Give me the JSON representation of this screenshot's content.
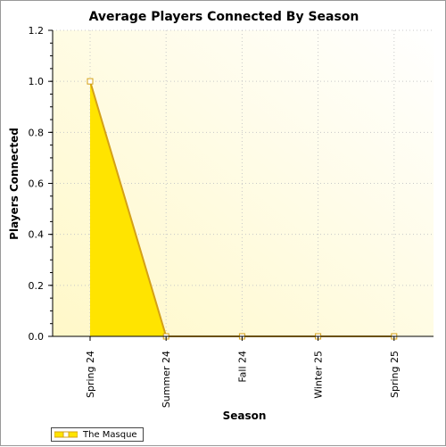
{
  "chart_data": {
    "type": "area",
    "title": "Average Players Connected By Season",
    "xlabel": "Season",
    "ylabel": "Players Connected",
    "categories": [
      "Spring 24",
      "Summer 24",
      "Fall 24",
      "Winter 25",
      "Spring 25"
    ],
    "series": [
      {
        "name": "The Masque",
        "values": [
          1.0,
          0.0,
          0.0,
          0.0,
          0.0
        ]
      }
    ],
    "ylim": [
      0,
      1.2
    ],
    "yticks": [
      "0.0",
      "0.2",
      "0.4",
      "0.6",
      "0.8",
      "1.0",
      "1.2"
    ],
    "grid": true,
    "legend": "bottom-left",
    "colors": {
      "fill": "#ffe400",
      "line": "#d4a017",
      "plot_bg_from": "#fffcdc",
      "plot_bg_to": "#ffffff"
    }
  }
}
